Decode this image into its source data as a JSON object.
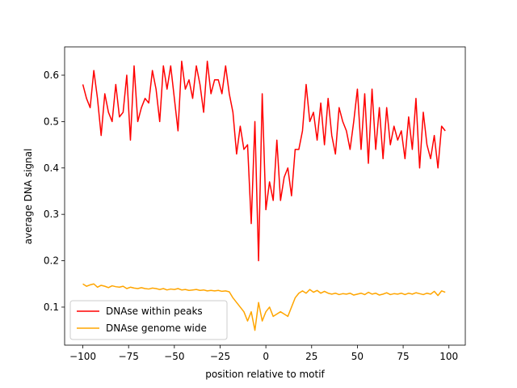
{
  "chart_data": {
    "type": "line",
    "xlabel": "position relative to motif",
    "ylabel": "average DNA signal",
    "x": [
      -100,
      -98,
      -96,
      -94,
      -92,
      -90,
      -88,
      -86,
      -84,
      -82,
      -80,
      -78,
      -76,
      -74,
      -72,
      -70,
      -68,
      -66,
      -64,
      -62,
      -60,
      -58,
      -56,
      -54,
      -52,
      -50,
      -48,
      -46,
      -44,
      -42,
      -40,
      -38,
      -36,
      -34,
      -32,
      -30,
      -28,
      -26,
      -24,
      -22,
      -20,
      -18,
      -16,
      -14,
      -12,
      -10,
      -8,
      -6,
      -4,
      -2,
      0,
      2,
      4,
      6,
      8,
      10,
      12,
      14,
      16,
      18,
      20,
      22,
      24,
      26,
      28,
      30,
      32,
      34,
      36,
      38,
      40,
      42,
      44,
      46,
      48,
      50,
      52,
      54,
      56,
      58,
      60,
      62,
      64,
      66,
      68,
      70,
      72,
      74,
      76,
      78,
      80,
      82,
      84,
      86,
      88,
      90,
      92,
      94,
      96,
      98
    ],
    "series": [
      {
        "name": "DNAse within peaks",
        "color": "#ff0000",
        "values": [
          0.58,
          0.55,
          0.53,
          0.61,
          0.55,
          0.47,
          0.56,
          0.52,
          0.5,
          0.58,
          0.51,
          0.52,
          0.6,
          0.46,
          0.62,
          0.5,
          0.53,
          0.55,
          0.54,
          0.61,
          0.57,
          0.5,
          0.62,
          0.57,
          0.62,
          0.55,
          0.48,
          0.63,
          0.57,
          0.59,
          0.55,
          0.62,
          0.58,
          0.52,
          0.63,
          0.56,
          0.59,
          0.59,
          0.56,
          0.62,
          0.56,
          0.52,
          0.43,
          0.49,
          0.44,
          0.45,
          0.28,
          0.5,
          0.2,
          0.56,
          0.31,
          0.37,
          0.33,
          0.46,
          0.33,
          0.38,
          0.4,
          0.34,
          0.44,
          0.44,
          0.48,
          0.58,
          0.5,
          0.52,
          0.46,
          0.54,
          0.45,
          0.55,
          0.47,
          0.43,
          0.53,
          0.5,
          0.48,
          0.44,
          0.5,
          0.57,
          0.44,
          0.56,
          0.41,
          0.57,
          0.44,
          0.53,
          0.42,
          0.53,
          0.45,
          0.49,
          0.46,
          0.48,
          0.42,
          0.51,
          0.44,
          0.55,
          0.4,
          0.52,
          0.45,
          0.42,
          0.47,
          0.4,
          0.49,
          0.48
        ]
      },
      {
        "name": "DNAse genome wide",
        "color": "#ffa500",
        "values": [
          0.15,
          0.145,
          0.148,
          0.15,
          0.143,
          0.147,
          0.145,
          0.142,
          0.146,
          0.144,
          0.143,
          0.145,
          0.14,
          0.143,
          0.141,
          0.14,
          0.142,
          0.14,
          0.139,
          0.141,
          0.14,
          0.138,
          0.14,
          0.137,
          0.139,
          0.138,
          0.14,
          0.137,
          0.138,
          0.136,
          0.137,
          0.138,
          0.136,
          0.137,
          0.135,
          0.136,
          0.135,
          0.136,
          0.134,
          0.135,
          0.133,
          0.12,
          0.11,
          0.1,
          0.09,
          0.07,
          0.09,
          0.05,
          0.11,
          0.07,
          0.09,
          0.1,
          0.08,
          0.085,
          0.09,
          0.085,
          0.08,
          0.1,
          0.12,
          0.13,
          0.135,
          0.13,
          0.138,
          0.132,
          0.136,
          0.13,
          0.134,
          0.13,
          0.128,
          0.13,
          0.127,
          0.129,
          0.128,
          0.13,
          0.126,
          0.128,
          0.13,
          0.127,
          0.132,
          0.128,
          0.13,
          0.126,
          0.128,
          0.131,
          0.127,
          0.129,
          0.128,
          0.13,
          0.127,
          0.13,
          0.128,
          0.131,
          0.129,
          0.127,
          0.13,
          0.128,
          0.134,
          0.125,
          0.135,
          0.132
        ]
      }
    ],
    "xlim": [
      -109.95,
      108.95
    ],
    "xticks": [
      {
        "value": -100,
        "label": "−100"
      },
      {
        "value": -75,
        "label": "−75"
      },
      {
        "value": -50,
        "label": "−50"
      },
      {
        "value": -25,
        "label": "−25"
      },
      0,
      25,
      50,
      75,
      100
    ],
    "ylim": [
      0.018,
      0.661
    ],
    "yticks": [
      0.1,
      0.2,
      0.3,
      0.4,
      0.5,
      0.6
    ],
    "legend": "lower left"
  }
}
